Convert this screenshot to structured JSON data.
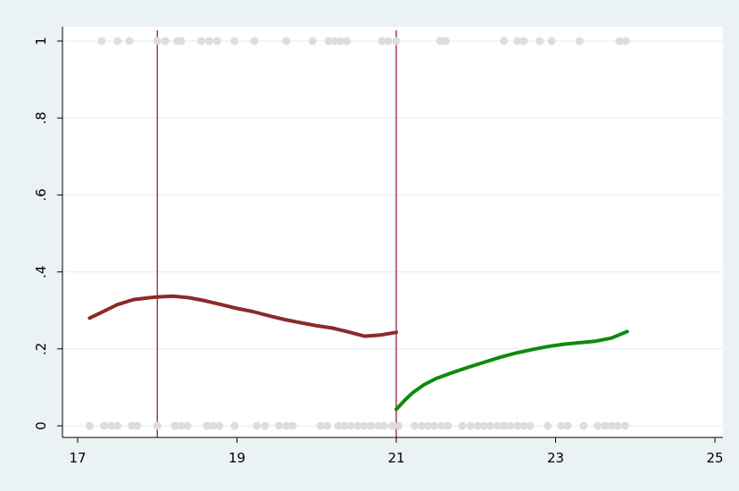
{
  "chart_data": {
    "type": "scatter",
    "title": "",
    "xlabel": "",
    "ylabel": "",
    "xlim": [
      17,
      25
    ],
    "ylim": [
      0,
      1
    ],
    "x_ticks": [
      "17",
      "19",
      "21",
      "23",
      "25"
    ],
    "x_tick_values": [
      17,
      19,
      21,
      23,
      25
    ],
    "y_ticks": [
      "0",
      ".2",
      ".4",
      ".6",
      ".8",
      "1"
    ],
    "y_tick_values": [
      0,
      0.2,
      0.4,
      0.6,
      0.8,
      1
    ],
    "grid": true,
    "legend": "none",
    "vertical_lines": [
      18,
      21
    ],
    "points_y1_x": [
      17.3,
      17.5,
      17.65,
      18.0,
      18.1,
      18.25,
      18.3,
      18.55,
      18.65,
      18.75,
      18.97,
      19.22,
      19.62,
      19.95,
      20.15,
      20.23,
      20.3,
      20.38,
      20.82,
      20.9,
      21.0,
      21.55,
      21.62,
      22.35,
      22.52,
      22.6,
      22.8,
      22.95,
      23.3,
      23.8,
      23.88
    ],
    "points_y0_x": [
      17.15,
      17.33,
      17.42,
      17.5,
      17.68,
      17.75,
      18.0,
      18.22,
      18.3,
      18.38,
      18.62,
      18.7,
      18.78,
      18.97,
      19.25,
      19.35,
      19.53,
      19.62,
      19.7,
      20.05,
      20.13,
      20.27,
      20.35,
      20.43,
      20.52,
      20.6,
      20.68,
      20.77,
      20.85,
      20.95,
      21.03,
      21.23,
      21.32,
      21.4,
      21.48,
      21.57,
      21.65,
      21.83,
      21.93,
      22.02,
      22.1,
      22.18,
      22.27,
      22.35,
      22.43,
      22.52,
      22.6,
      22.68,
      22.9,
      23.07,
      23.15,
      23.35,
      23.53,
      23.62,
      23.7,
      23.78,
      23.87
    ],
    "series": [
      {
        "color": "#8b2a2a",
        "x": [
          17.15,
          17.3,
          17.5,
          17.7,
          17.9,
          18.0,
          18.2,
          18.4,
          18.6,
          18.8,
          19.0,
          19.2,
          19.4,
          19.6,
          19.8,
          20.0,
          20.2,
          20.4,
          20.6,
          20.8,
          21.0
        ],
        "y": [
          0.28,
          0.295,
          0.315,
          0.328,
          0.333,
          0.335,
          0.337,
          0.333,
          0.325,
          0.315,
          0.305,
          0.297,
          0.286,
          0.276,
          0.268,
          0.26,
          0.254,
          0.244,
          0.233,
          0.236,
          0.243
        ]
      },
      {
        "color": "#0f8a0f",
        "x": [
          21.0,
          21.1,
          21.2,
          21.35,
          21.5,
          21.7,
          21.9,
          22.1,
          22.3,
          22.5,
          22.7,
          22.9,
          23.1,
          23.3,
          23.5,
          23.7,
          23.9
        ],
        "y": [
          0.043,
          0.065,
          0.085,
          0.107,
          0.123,
          0.138,
          0.152,
          0.165,
          0.178,
          0.189,
          0.198,
          0.206,
          0.212,
          0.216,
          0.22,
          0.228,
          0.245
        ]
      }
    ]
  },
  "colors": {
    "background": "#eaf2f3",
    "plot_background": "#ffffff",
    "grid": "#e6eded",
    "points": "#dddddd",
    "vertical_line": "#a01a3c",
    "axis": "#000000"
  }
}
